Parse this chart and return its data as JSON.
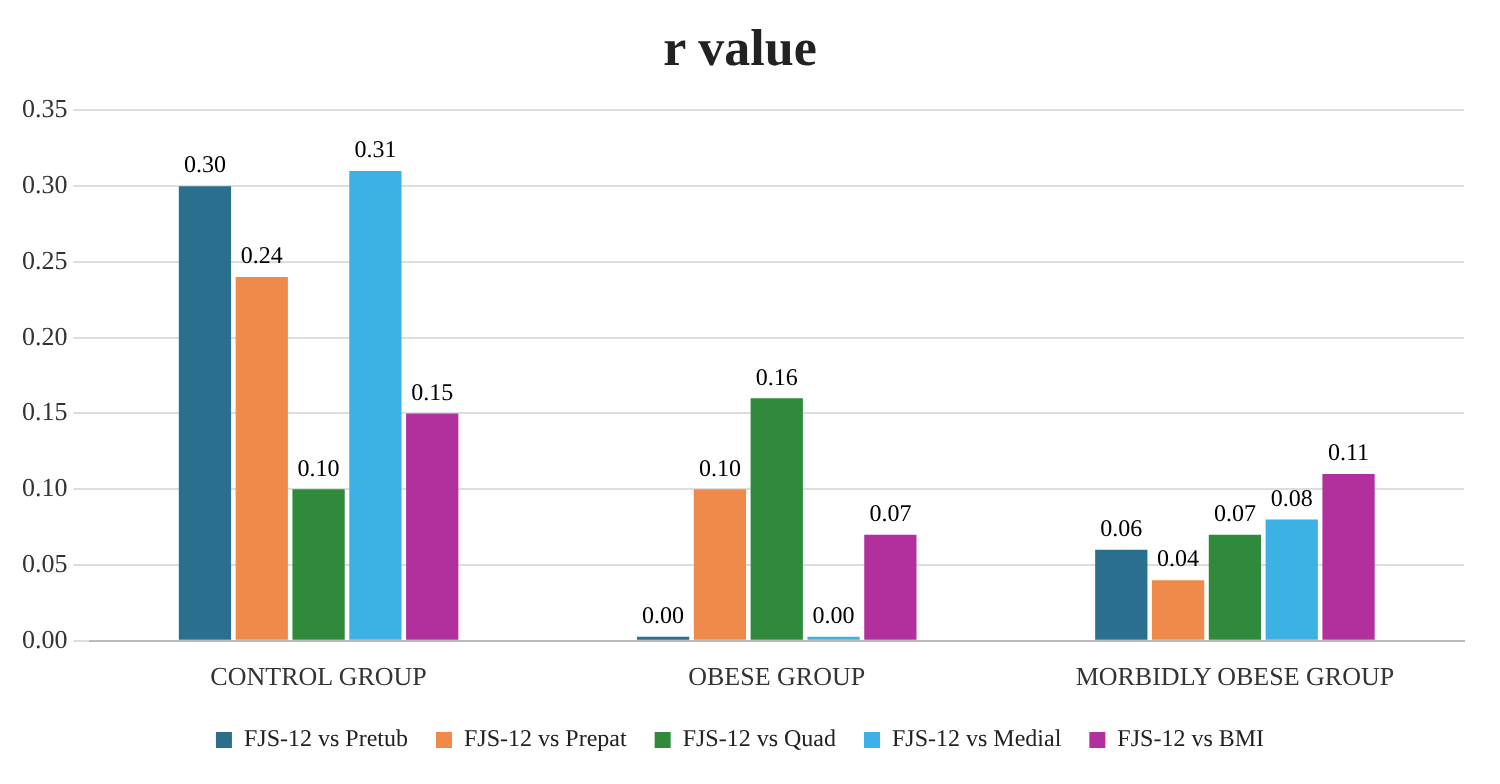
{
  "chart_data": {
    "type": "bar",
    "title": "r value",
    "categories": [
      "CONTROL GROUP",
      "OBESE GROUP",
      "MORBIDLY OBESE GROUP"
    ],
    "series": [
      {
        "name": "FJS-12 vs Pretub",
        "color": "#2b6f8f",
        "values": [
          0.3,
          0.0,
          0.06
        ],
        "value_labels": [
          "0.30",
          "0.00",
          "0.06"
        ]
      },
      {
        "name": "FJS-12 vs Prepat",
        "color": "#f08a4b",
        "values": [
          0.24,
          0.1,
          0.04
        ],
        "value_labels": [
          "0.24",
          "0.10",
          "0.04"
        ]
      },
      {
        "name": "FJS-12 vs Quad",
        "color": "#2f8a3c",
        "values": [
          0.1,
          0.16,
          0.07
        ],
        "value_labels": [
          "0.10",
          "0.16",
          "0.07"
        ]
      },
      {
        "name": "FJS-12 vs Medial",
        "color": "#3cb2e4",
        "values": [
          0.31,
          0.0,
          0.08
        ],
        "value_labels": [
          "0.31",
          "0.00",
          "0.08"
        ]
      },
      {
        "name": "FJS-12 vs BMI",
        "color": "#b2309e",
        "values": [
          0.15,
          0.07,
          0.11
        ],
        "value_labels": [
          "0.15",
          "0.07",
          "0.11"
        ]
      }
    ],
    "ylim": [
      0,
      0.35
    ],
    "yticks": [
      {
        "value": 0,
        "label": "0.00"
      },
      {
        "value": 0.05,
        "label": "0.05"
      },
      {
        "value": 0.1,
        "label": "0.10"
      },
      {
        "value": 0.15,
        "label": "0.15"
      },
      {
        "value": 0.2,
        "label": "0.20"
      },
      {
        "value": 0.25,
        "label": "0.25"
      },
      {
        "value": 0.3,
        "label": "0.30"
      },
      {
        "value": 0.35,
        "label": "0.35"
      }
    ],
    "grid": "y",
    "legend": "bottom"
  }
}
